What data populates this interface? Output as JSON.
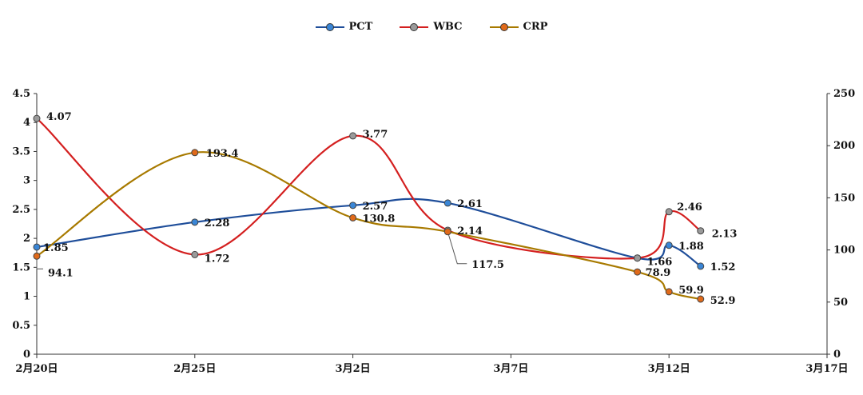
{
  "chart_data": {
    "type": "line",
    "title": "",
    "x": [
      "2月20日",
      "2月25日",
      "3月2日",
      "3月7日",
      "3月12日",
      "3月17日"
    ],
    "left_axis": {
      "ticks": [
        "0",
        "0.5",
        "1",
        "1.5",
        "2",
        "2.5",
        "3",
        "3.5",
        "4",
        "4.5"
      ],
      "ylim": [
        0,
        4.5
      ]
    },
    "right_axis": {
      "ticks": [
        "0",
        "50",
        "100",
        "150",
        "200",
        "250"
      ],
      "ylim": [
        0,
        250
      ]
    },
    "series": [
      {
        "name": "PCT",
        "axis": "left",
        "color": "#1f4e9a",
        "marker": "#3a86d6",
        "points": [
          {
            "x": "2月20日",
            "y": 1.85,
            "label": "1.85"
          },
          {
            "x": "2月25日",
            "y": 2.28,
            "label": "2.28"
          },
          {
            "x": "3月2日",
            "y": 2.57,
            "label": "2.57"
          },
          {
            "x": "3月5日",
            "y": 2.61,
            "label": "2.61"
          },
          {
            "x": "3月11日",
            "y": 1.66,
            "label": "1.66"
          },
          {
            "x": "3月12日",
            "y": 1.88,
            "label": "1.88"
          },
          {
            "x": "3月13日",
            "y": 1.52,
            "label": "1.52"
          }
        ]
      },
      {
        "name": "WBC",
        "axis": "left",
        "color": "#d42020",
        "marker": "#9a9a9a",
        "points": [
          {
            "x": "2月20日",
            "y": 4.07,
            "label": "4.07"
          },
          {
            "x": "2月25日",
            "y": 1.72,
            "label": "1.72"
          },
          {
            "x": "3月2日",
            "y": 3.77,
            "label": "3.77"
          },
          {
            "x": "3月5日",
            "y": 2.14,
            "label": "2.14"
          },
          {
            "x": "3月11日",
            "y": 1.66,
            "label": ""
          },
          {
            "x": "3月12日",
            "y": 2.46,
            "label": "2.46"
          },
          {
            "x": "3月13日",
            "y": 2.13,
            "label": "2.13"
          }
        ]
      },
      {
        "name": "CRP",
        "axis": "right",
        "color": "#a87a00",
        "marker": "#e06a1a",
        "points": [
          {
            "x": "2月20日",
            "y": 94.1,
            "label": "94.1"
          },
          {
            "x": "2月25日",
            "y": 193.4,
            "label": "193.4"
          },
          {
            "x": "3月2日",
            "y": 130.8,
            "label": "130.8"
          },
          {
            "x": "3月5日",
            "y": 117.5,
            "label": "117.5"
          },
          {
            "x": "3月11日",
            "y": 78.9,
            "label": "78.9"
          },
          {
            "x": "3月12日",
            "y": 59.9,
            "label": "59.9"
          },
          {
            "x": "3月13日",
            "y": 52.9,
            "label": "52.9"
          }
        ]
      }
    ],
    "legend_position": "top-center",
    "grid": false
  }
}
